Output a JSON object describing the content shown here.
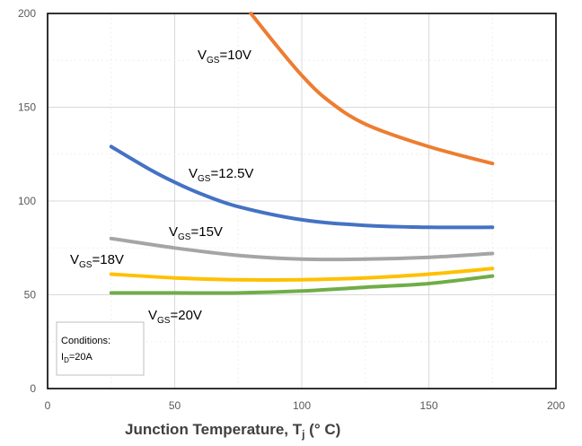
{
  "chart_data": {
    "type": "line",
    "xlabel": {
      "main": "Junction Temperature, T",
      "sub": "j",
      "suffix": " (° C)"
    },
    "ylabel": "",
    "xlim": [
      0,
      200
    ],
    "ylim": [
      0,
      200
    ],
    "xticks": [
      "0",
      "50",
      "100",
      "150",
      "200"
    ],
    "yticks": [
      "0",
      "50",
      "100",
      "150",
      "200"
    ],
    "grid": true,
    "series": [
      {
        "name": "VGS=10V",
        "label_main": "V",
        "label_sub": "GS",
        "label_tail": "=10V",
        "color": "#ED7D31",
        "x": [
          80,
          90,
          100,
          110,
          125,
          150,
          175
        ],
        "y": [
          200,
          183,
          167,
          154,
          141,
          129,
          120
        ]
      },
      {
        "name": "VGS=12.5V",
        "label_main": "V",
        "label_sub": "GS",
        "label_tail": "=12.5V",
        "color": "#4472C4",
        "x": [
          25,
          40,
          50,
          60,
          75,
          100,
          125,
          150,
          175
        ],
        "y": [
          129,
          117,
          110,
          104,
          97,
          90,
          87,
          86,
          86
        ]
      },
      {
        "name": "VGS=15V",
        "label_main": "V",
        "label_sub": "GS",
        "label_tail": "=15V",
        "color": "#A5A5A5",
        "x": [
          25,
          50,
          75,
          100,
          125,
          150,
          175
        ],
        "y": [
          80,
          75,
          71,
          69,
          69,
          70,
          72
        ]
      },
      {
        "name": "VGS=18V",
        "label_main": "V",
        "label_sub": "GS",
        "label_tail": "=18V",
        "color": "#FFC000",
        "x": [
          25,
          50,
          75,
          100,
          125,
          150,
          175
        ],
        "y": [
          61,
          59,
          58,
          58,
          59,
          61,
          64
        ]
      },
      {
        "name": "VGS=20V",
        "label_main": "V",
        "label_sub": "GS",
        "label_tail": "=20V",
        "color": "#70AD47",
        "x": [
          25,
          50,
          75,
          100,
          125,
          150,
          175
        ],
        "y": [
          51,
          51,
          51,
          52,
          54,
          56,
          60
        ]
      }
    ],
    "conditions": {
      "title": "Conditions:",
      "line_main": "I",
      "line_sub": "D",
      "line_tail": "=20A"
    }
  }
}
